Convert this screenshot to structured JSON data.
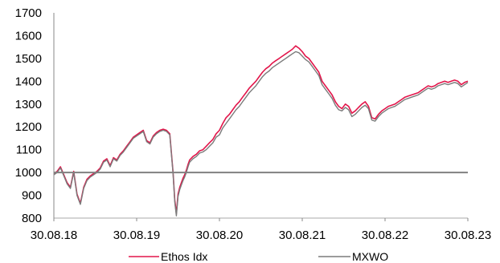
{
  "chart_data": {
    "type": "line",
    "title": "",
    "xlabel": "",
    "ylabel": "",
    "ylim": [
      800,
      1700
    ],
    "yticks": [
      800,
      900,
      1000,
      1100,
      1200,
      1300,
      1400,
      1500,
      1600,
      1700
    ],
    "xticks": [
      "30.08.18",
      "30.08.19",
      "30.08.20",
      "30.08.21",
      "30.08.22",
      "30.08.23"
    ],
    "xrange_years": [
      0,
      5
    ],
    "baseline": 1000,
    "grid": false,
    "legend_position": "bottom",
    "series": [
      {
        "name": "Ethos Idx",
        "color": "#e2154a",
        "x": [
          0,
          0.04,
          0.08,
          0.12,
          0.16,
          0.2,
          0.24,
          0.28,
          0.32,
          0.36,
          0.4,
          0.44,
          0.48,
          0.52,
          0.56,
          0.6,
          0.64,
          0.68,
          0.72,
          0.76,
          0.8,
          0.84,
          0.88,
          0.92,
          0.96,
          1.0,
          1.04,
          1.08,
          1.12,
          1.16,
          1.2,
          1.24,
          1.28,
          1.32,
          1.36,
          1.4,
          1.44,
          1.46,
          1.48,
          1.5,
          1.52,
          1.54,
          1.56,
          1.58,
          1.6,
          1.62,
          1.64,
          1.68,
          1.72,
          1.76,
          1.8,
          1.84,
          1.88,
          1.92,
          1.96,
          2.0,
          2.04,
          2.08,
          2.12,
          2.16,
          2.2,
          2.24,
          2.28,
          2.32,
          2.36,
          2.4,
          2.44,
          2.48,
          2.52,
          2.56,
          2.6,
          2.64,
          2.68,
          2.72,
          2.76,
          2.8,
          2.84,
          2.88,
          2.92,
          2.96,
          3.0,
          3.04,
          3.08,
          3.12,
          3.16,
          3.2,
          3.24,
          3.28,
          3.32,
          3.36,
          3.4,
          3.44,
          3.48,
          3.52,
          3.56,
          3.6,
          3.64,
          3.68,
          3.72,
          3.76,
          3.8,
          3.84,
          3.88,
          3.92,
          3.96,
          4.0,
          4.04,
          4.08,
          4.12,
          4.16,
          4.2,
          4.24,
          4.28,
          4.32,
          4.36,
          4.4,
          4.44,
          4.48,
          4.52,
          4.56,
          4.6,
          4.64,
          4.68,
          4.72,
          4.76,
          4.8,
          4.84,
          4.88,
          4.92,
          4.96,
          5.0
        ],
        "values": [
          995,
          1005,
          1025,
          990,
          955,
          935,
          1005,
          905,
          865,
          935,
          970,
          985,
          995,
          1005,
          1020,
          1050,
          1060,
          1030,
          1065,
          1055,
          1080,
          1095,
          1115,
          1135,
          1155,
          1165,
          1175,
          1185,
          1140,
          1130,
          1160,
          1175,
          1185,
          1190,
          1185,
          1170,
          1000,
          880,
          820,
          905,
          935,
          955,
          975,
          990,
          1010,
          1035,
          1055,
          1070,
          1080,
          1095,
          1100,
          1115,
          1130,
          1145,
          1170,
          1185,
          1215,
          1240,
          1255,
          1275,
          1295,
          1310,
          1330,
          1350,
          1370,
          1385,
          1400,
          1420,
          1440,
          1455,
          1465,
          1480,
          1490,
          1500,
          1510,
          1520,
          1530,
          1540,
          1555,
          1545,
          1530,
          1510,
          1500,
          1480,
          1460,
          1440,
          1400,
          1380,
          1360,
          1340,
          1310,
          1290,
          1280,
          1300,
          1290,
          1260,
          1270,
          1285,
          1300,
          1310,
          1290,
          1240,
          1235,
          1255,
          1270,
          1280,
          1290,
          1295,
          1300,
          1310,
          1320,
          1330,
          1335,
          1340,
          1345,
          1350,
          1360,
          1370,
          1380,
          1375,
          1380,
          1390,
          1395,
          1400,
          1395,
          1400,
          1405,
          1400,
          1385,
          1395,
          1400
        ]
      },
      {
        "name": "MXWO",
        "color": "#7b7b7b",
        "x": [
          0,
          0.04,
          0.08,
          0.12,
          0.16,
          0.2,
          0.24,
          0.28,
          0.32,
          0.36,
          0.4,
          0.44,
          0.48,
          0.52,
          0.56,
          0.6,
          0.64,
          0.68,
          0.72,
          0.76,
          0.8,
          0.84,
          0.88,
          0.92,
          0.96,
          1.0,
          1.04,
          1.08,
          1.12,
          1.16,
          1.2,
          1.24,
          1.28,
          1.32,
          1.36,
          1.4,
          1.44,
          1.46,
          1.48,
          1.5,
          1.52,
          1.54,
          1.56,
          1.58,
          1.6,
          1.62,
          1.64,
          1.68,
          1.72,
          1.76,
          1.8,
          1.84,
          1.88,
          1.92,
          1.96,
          2.0,
          2.04,
          2.08,
          2.12,
          2.16,
          2.2,
          2.24,
          2.28,
          2.32,
          2.36,
          2.4,
          2.44,
          2.48,
          2.52,
          2.56,
          2.6,
          2.64,
          2.68,
          2.72,
          2.76,
          2.8,
          2.84,
          2.88,
          2.92,
          2.96,
          3.0,
          3.04,
          3.08,
          3.12,
          3.16,
          3.2,
          3.24,
          3.28,
          3.32,
          3.36,
          3.4,
          3.44,
          3.48,
          3.52,
          3.56,
          3.6,
          3.64,
          3.68,
          3.72,
          3.76,
          3.8,
          3.84,
          3.88,
          3.92,
          3.96,
          4.0,
          4.04,
          4.08,
          4.12,
          4.16,
          4.2,
          4.24,
          4.28,
          4.32,
          4.36,
          4.4,
          4.44,
          4.48,
          4.52,
          4.56,
          4.6,
          4.64,
          4.68,
          4.72,
          4.76,
          4.8,
          4.84,
          4.88,
          4.92,
          4.96,
          5.0
        ],
        "values": [
          990,
          1000,
          1020,
          985,
          950,
          930,
          1000,
          900,
          860,
          930,
          965,
          980,
          990,
          1000,
          1015,
          1045,
          1055,
          1025,
          1060,
          1050,
          1075,
          1090,
          1110,
          1130,
          1150,
          1160,
          1170,
          1180,
          1135,
          1125,
          1155,
          1170,
          1180,
          1185,
          1180,
          1165,
          995,
          870,
          810,
          895,
          925,
          945,
          965,
          980,
          1000,
          1025,
          1045,
          1060,
          1070,
          1085,
          1090,
          1100,
          1115,
          1130,
          1155,
          1165,
          1195,
          1215,
          1235,
          1255,
          1275,
          1290,
          1310,
          1330,
          1350,
          1365,
          1380,
          1400,
          1420,
          1435,
          1445,
          1460,
          1470,
          1480,
          1490,
          1500,
          1510,
          1520,
          1530,
          1525,
          1510,
          1495,
          1485,
          1465,
          1445,
          1425,
          1385,
          1365,
          1345,
          1325,
          1295,
          1275,
          1270,
          1285,
          1275,
          1245,
          1255,
          1270,
          1285,
          1295,
          1280,
          1230,
          1225,
          1245,
          1260,
          1270,
          1280,
          1285,
          1290,
          1300,
          1310,
          1320,
          1325,
          1330,
          1335,
          1340,
          1350,
          1360,
          1370,
          1365,
          1370,
          1380,
          1385,
          1390,
          1385,
          1390,
          1395,
          1390,
          1375,
          1385,
          1395
        ]
      }
    ]
  }
}
